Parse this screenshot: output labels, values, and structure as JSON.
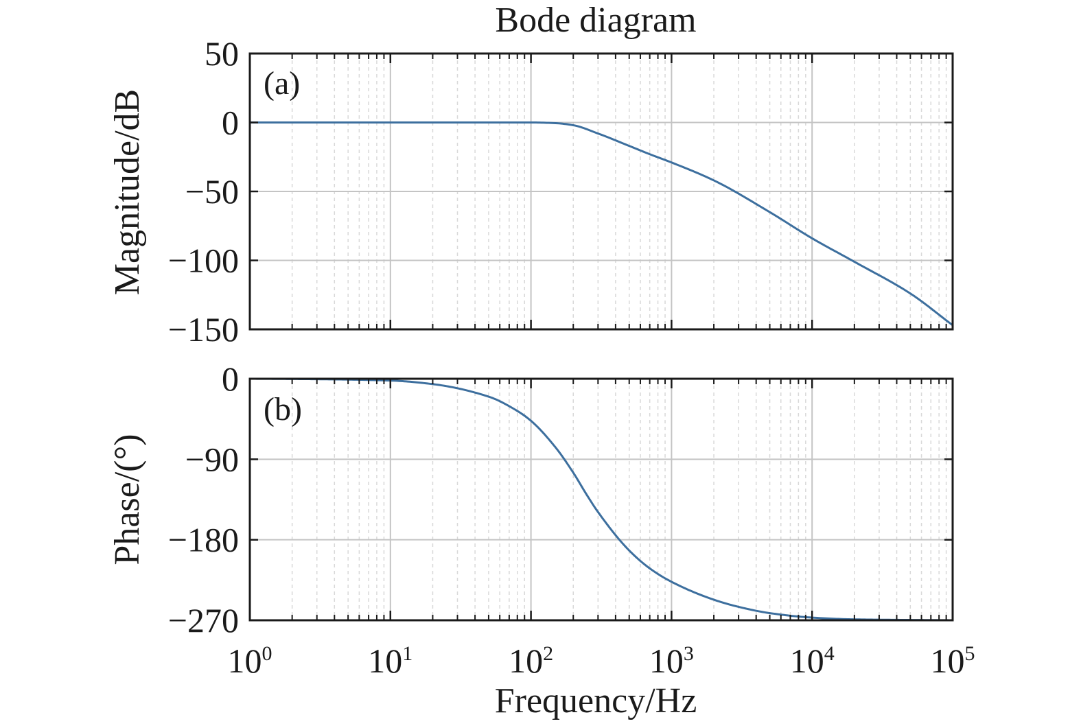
{
  "title": "Bode diagram",
  "xlabel": "Frequency/Hz",
  "colors": {
    "line": "#3d6f9e",
    "axis": "#1a1a1a",
    "grid_major": "#c4c4c4",
    "grid_minor": "#d8d8d8"
  },
  "x_ticks": [
    {
      "base": "10",
      "exp": "0"
    },
    {
      "base": "10",
      "exp": "1"
    },
    {
      "base": "10",
      "exp": "2"
    },
    {
      "base": "10",
      "exp": "3"
    },
    {
      "base": "10",
      "exp": "4"
    },
    {
      "base": "10",
      "exp": "5"
    }
  ],
  "magnitude": {
    "tag": "(a)",
    "ylabel": "Magnitude/dB",
    "yticks": [
      "50",
      "0",
      "−50",
      "−100",
      "−150"
    ]
  },
  "phase": {
    "tag": "(b)",
    "ylabel": "Phase/(°)",
    "yticks": [
      "0",
      "−90",
      "−180",
      "−270"
    ]
  },
  "chart_data": [
    {
      "type": "line",
      "title": "Bode diagram",
      "xlabel": "Frequency/Hz",
      "ylabel": "Magnitude/dB",
      "xscale": "log",
      "xlim": [
        1,
        100000
      ],
      "ylim": [
        -150,
        50
      ],
      "grid": true,
      "series": [
        {
          "x": [
            1,
            10,
            50,
            100,
            150,
            200,
            300,
            500,
            700,
            1000,
            2000,
            5000,
            10000,
            20000,
            50000,
            100000
          ],
          "y": [
            0,
            0,
            0,
            0,
            -0.5,
            -2,
            -8,
            -17,
            -23,
            -29,
            -42,
            -65,
            -84,
            -101,
            -124,
            -147
          ]
        }
      ]
    },
    {
      "type": "line",
      "xlabel": "Frequency/Hz",
      "ylabel": "Phase/(°)",
      "xscale": "log",
      "xlim": [
        1,
        100000
      ],
      "ylim": [
        -270,
        0
      ],
      "grid": true,
      "series": [
        {
          "x": [
            1,
            3,
            10,
            20,
            50,
            80,
            100,
            150,
            200,
            250,
            300,
            500,
            700,
            1000,
            2000,
            3000,
            5000,
            10000,
            20000,
            100000
          ],
          "y": [
            0,
            -0.5,
            -2,
            -6,
            -20,
            -36,
            -47,
            -77,
            -105,
            -130,
            -149,
            -192,
            -212,
            -227,
            -247,
            -255,
            -262,
            -267,
            -269,
            -270
          ]
        }
      ]
    }
  ]
}
